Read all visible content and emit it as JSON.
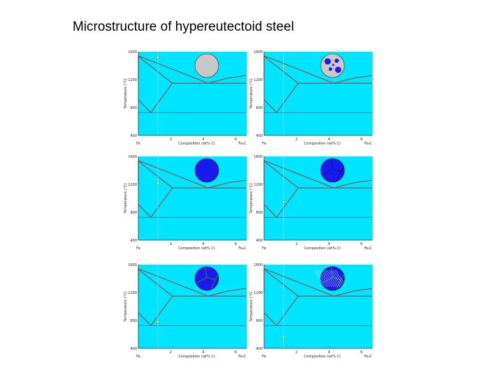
{
  "title": "Microstructure of hypereutectoid steel",
  "colors": {
    "plot_bg": "#00e5ff",
    "phase_line": "#8a4a4a",
    "eutectoid_line": "#4a7a9a",
    "composition_line": "#9ad8ff",
    "marker": "#ffff66",
    "austenite_grain": "#1a1aee",
    "liquid_grain": "#c8c8c8",
    "cementite_network": "#2a7a4a"
  },
  "panels": [
    {
      "y_label": "Temperature (°C)",
      "x_label": "Composition (wt% C)",
      "y_ticks": [
        "1600",
        "1200",
        "800",
        "400"
      ],
      "x_ticks": [
        "2",
        "4",
        "6"
      ],
      "x_left_label": "Fe",
      "x_right_label": "Fe₃C",
      "circle_state": "liquid",
      "marker_temp": 1520
    },
    {
      "y_label": "Temperature (°C)",
      "x_label": "Composition (wt% C)",
      "y_ticks": [
        "1600",
        "1200",
        "800",
        "400"
      ],
      "x_ticks": [
        "2",
        "4",
        "6"
      ],
      "x_left_label": "Fe",
      "x_right_label": "Fe₃C",
      "circle_state": "solidifying",
      "marker_temp": 1390
    },
    {
      "y_label": "Temperature (°C)",
      "x_label": "Composition (wt% C)",
      "y_ticks": [
        "1600",
        "1200",
        "800",
        "400"
      ],
      "x_ticks": [
        "2",
        "4",
        "6"
      ],
      "x_left_label": "Fe",
      "x_right_label": "Fe₃C",
      "circle_state": "austenite",
      "marker_temp": 1220
    },
    {
      "y_label": "Temperature (°C)",
      "x_label": "Composition (wt% C)",
      "y_ticks": [
        "1600",
        "1200",
        "800",
        "400"
      ],
      "x_ticks": [
        "2",
        "4",
        "6"
      ],
      "x_left_label": "Fe",
      "x_right_label": "Fe₃C",
      "circle_state": "grain_boundaries",
      "marker_temp": 950
    },
    {
      "y_label": "Temperature (°C)",
      "x_label": "Composition (wt% C)",
      "y_ticks": [
        "1600",
        "1200",
        "800",
        "400"
      ],
      "x_ticks": [
        "2",
        "4",
        "6"
      ],
      "x_left_label": "Fe",
      "x_right_label": "Fe₃C",
      "circle_state": "cementite_network",
      "marker_temp": 780
    },
    {
      "y_label": "Temperature (°C)",
      "x_label": "Composition (wt% C)",
      "y_ticks": [
        "1600",
        "1200",
        "800",
        "400"
      ],
      "x_ticks": [
        "2",
        "4",
        "6"
      ],
      "x_left_label": "Fe",
      "x_right_label": "Fe₃C",
      "circle_state": "pearlite",
      "marker_temp": 560
    }
  ]
}
